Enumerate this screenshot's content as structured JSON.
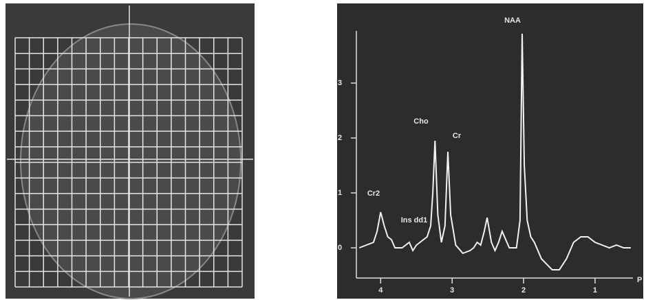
{
  "chart_data": {
    "type": "line",
    "x_label": "P",
    "annotations": [
      "NAA",
      "Cho",
      "Cr",
      "Cr2",
      "Ins dd1"
    ],
    "x": [
      4.3,
      4.2,
      4.1,
      4.05,
      4.0,
      3.95,
      3.9,
      3.85,
      3.8,
      3.7,
      3.6,
      3.55,
      3.5,
      3.4,
      3.35,
      3.3,
      3.27,
      3.24,
      3.2,
      3.15,
      3.1,
      3.06,
      3.02,
      2.95,
      2.85,
      2.75,
      2.7,
      2.65,
      2.6,
      2.55,
      2.51,
      2.45,
      2.4,
      2.35,
      2.3,
      2.25,
      2.2,
      2.1,
      2.05,
      2.02,
      1.99,
      1.95,
      1.9,
      1.85,
      1.75,
      1.6,
      1.5,
      1.4,
      1.3,
      1.2,
      1.1,
      1.0,
      0.9,
      0.8,
      0.7,
      0.6,
      0.5
    ],
    "values": [
      0.0,
      0.05,
      0.1,
      0.3,
      0.65,
      0.4,
      0.2,
      0.15,
      0.0,
      0.0,
      0.1,
      -0.05,
      0.05,
      0.15,
      0.2,
      0.4,
      1.0,
      1.95,
      0.6,
      0.1,
      0.4,
      1.75,
      0.6,
      0.05,
      -0.1,
      -0.05,
      0.0,
      0.1,
      0.05,
      0.3,
      0.55,
      0.1,
      -0.05,
      0.1,
      0.3,
      0.15,
      0.0,
      0.0,
      0.5,
      3.9,
      1.5,
      0.5,
      0.2,
      0.1,
      -0.2,
      -0.4,
      -0.4,
      -0.2,
      0.1,
      0.2,
      0.2,
      0.1,
      0.05,
      0.0,
      0.05,
      0.0,
      0.0
    ],
    "color": "#f2f2f2",
    "xlim": [
      4.34,
      0.47
    ],
    "ylim": [
      -0.55,
      3.95
    ],
    "xticks": [
      4,
      3,
      2,
      1
    ],
    "yticks": [
      0,
      1,
      2,
      3
    ]
  }
}
